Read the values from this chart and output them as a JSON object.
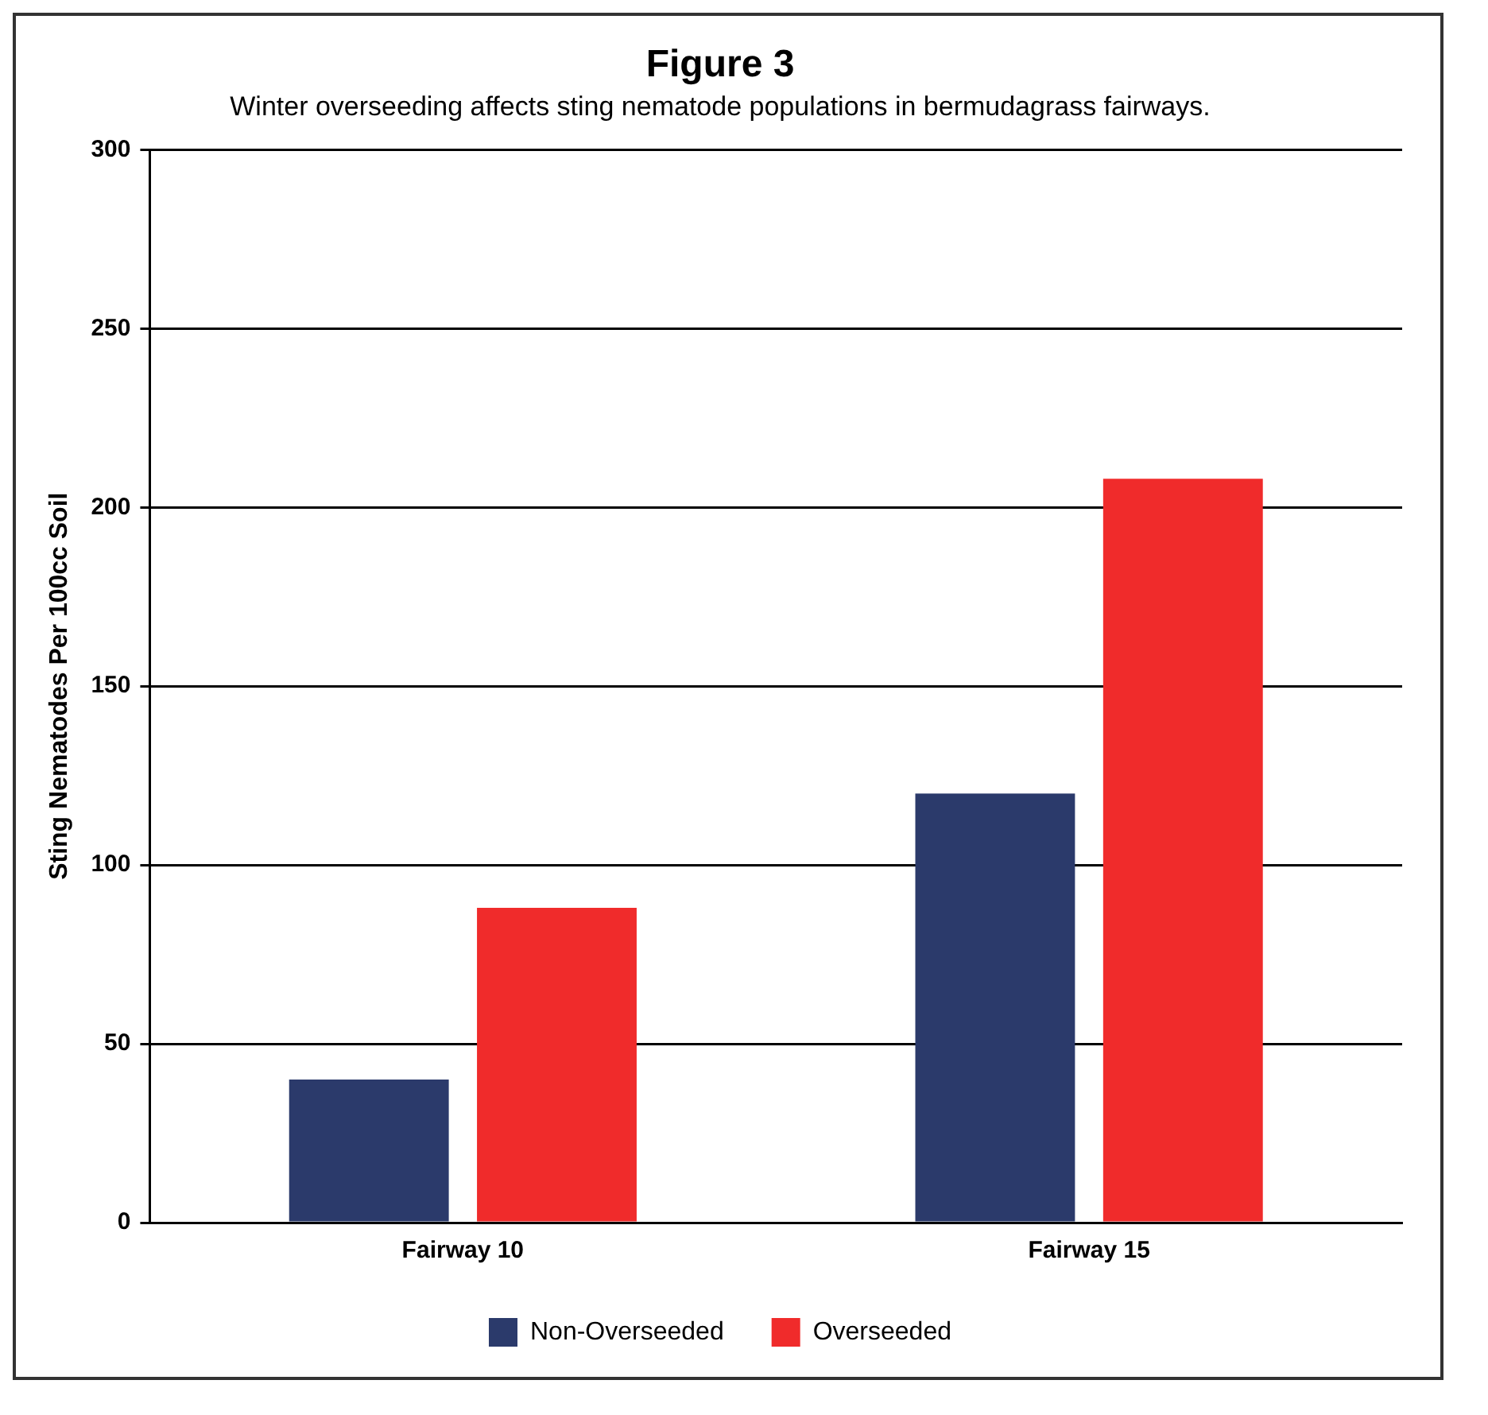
{
  "chart_data": {
    "type": "bar",
    "title": "Figure 3",
    "subtitle": "Winter overseeding affects sting nematode populations in bermudagrass fairways.",
    "ylabel": "Sting Nematodes Per 100cc Soil",
    "categories": [
      "Fairway 10",
      "Fairway 15"
    ],
    "series": [
      {
        "name": "Non-Overseeded",
        "color": "#2b3a6b",
        "values": [
          40,
          120
        ]
      },
      {
        "name": "Overseeded",
        "color": "#f02b2b",
        "values": [
          88,
          208
        ]
      }
    ],
    "ylim": [
      0,
      300
    ],
    "yticks": [
      0,
      50,
      100,
      150,
      200,
      250,
      300
    ],
    "grid": "y",
    "legend": "bottom"
  }
}
